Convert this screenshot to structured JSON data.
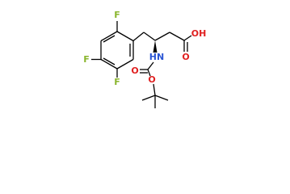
{
  "molecule": {
    "labels": [
      "F",
      "F",
      "F",
      "HN",
      "OH",
      "O",
      "O",
      "O"
    ]
  }
}
